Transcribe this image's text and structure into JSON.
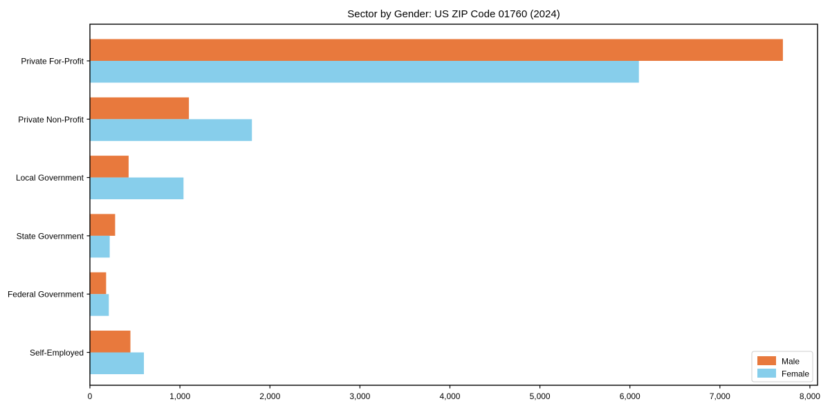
{
  "figure": {
    "background": "#ffffff"
  },
  "chart_data": {
    "type": "bar",
    "orientation": "horizontal",
    "title": "Sector by Gender: US ZIP Code 01760 (2024)",
    "categories": [
      "Private For-Profit",
      "Private Non-Profit",
      "Local Government",
      "State Government",
      "Federal Government",
      "Self-Employed"
    ],
    "series": [
      {
        "name": "Male",
        "color": "#e8793d",
        "values": [
          7700,
          1100,
          430,
          280,
          180,
          450
        ]
      },
      {
        "name": "Female",
        "color": "#87ceeb",
        "values": [
          6100,
          1800,
          1040,
          220,
          210,
          600
        ]
      }
    ],
    "xlabel": "",
    "ylabel": "",
    "xlim": [
      0,
      8085
    ],
    "x_ticks": [
      0,
      1000,
      2000,
      3000,
      4000,
      5000,
      6000,
      7000,
      8000
    ],
    "x_tick_labels": [
      "0",
      "1,000",
      "2,000",
      "3,000",
      "4,000",
      "5,000",
      "6,000",
      "7,000",
      "8,000"
    ],
    "grid": false,
    "plot_border": true,
    "axis_color": "#000000",
    "legend": {
      "position": "lower right",
      "border_color": "#cccccc",
      "background": "#ffffff",
      "entries": [
        {
          "label": "Male",
          "color": "#e8793d"
        },
        {
          "label": "Female",
          "color": "#87ceeb"
        }
      ]
    }
  }
}
